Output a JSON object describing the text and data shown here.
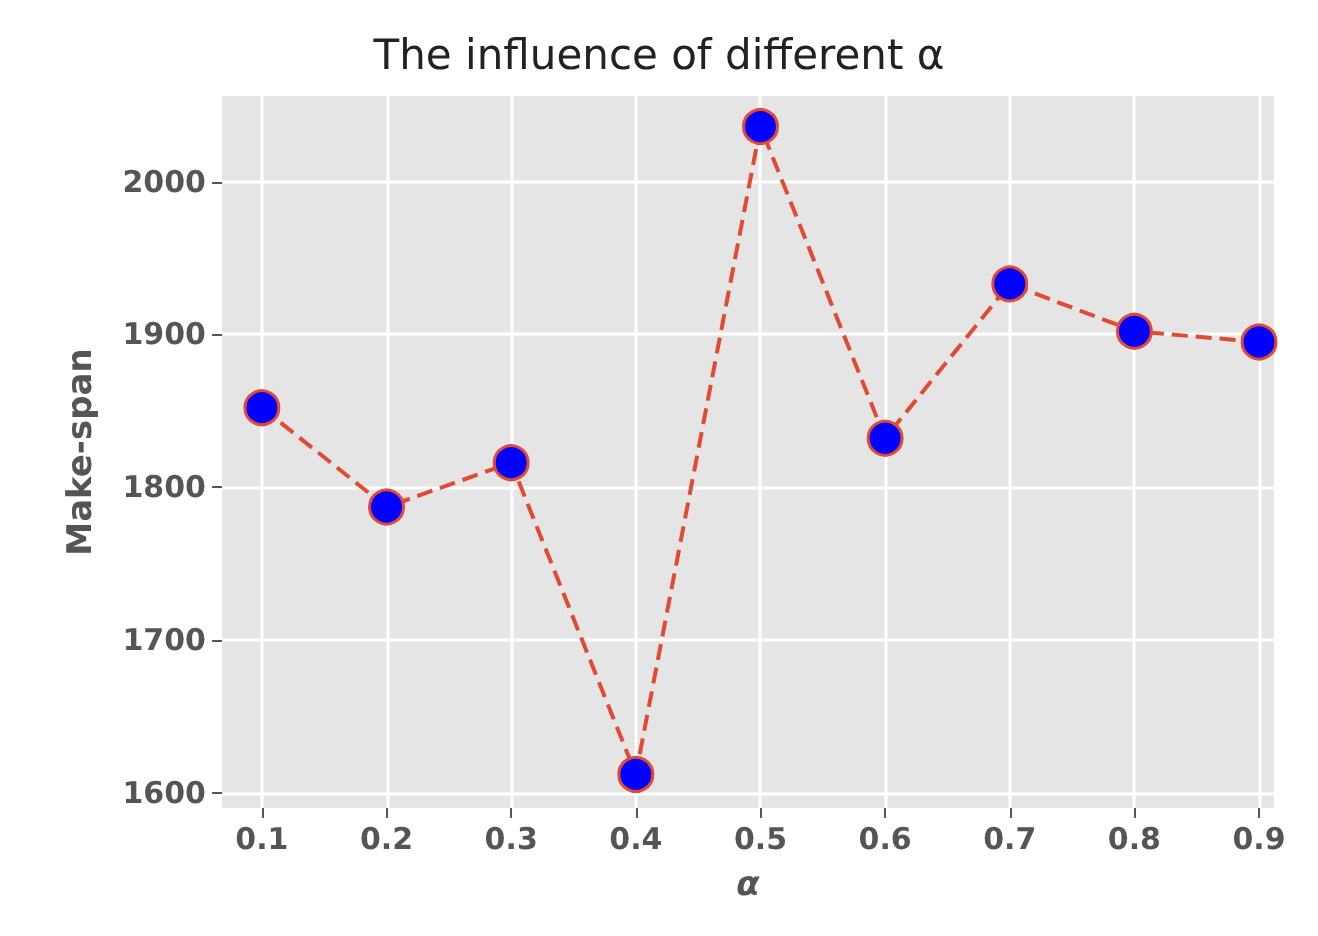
{
  "chart_data": {
    "type": "line",
    "title": "The influence of different α",
    "xlabel": "α",
    "ylabel": "Make-span",
    "x": [
      0.1,
      0.2,
      0.3,
      0.4,
      0.5,
      0.6,
      0.7,
      0.8,
      0.9
    ],
    "series": [
      {
        "color": "#e24a33",
        "colors": [
          "#0000ff",
          "#0000ff",
          "#0000ff",
          "#0000ff",
          "#0000ff",
          "#0000ff",
          "#0000ff",
          "#0000ff",
          "#0000ff"
        ],
        "values": [
          1852,
          1787,
          1816,
          1612,
          2036,
          1832,
          1933,
          1902,
          1895
        ]
      }
    ],
    "xlim": [
      0.068,
      0.912
    ],
    "xticks": [
      0.1,
      0.2,
      0.3,
      0.4,
      0.5,
      0.6,
      0.7,
      0.8,
      0.9
    ],
    "ylim": [
      1590,
      2056
    ],
    "yticks": [
      1600,
      1700,
      1800,
      1900,
      2000
    ],
    "grid": true,
    "marker": "circle",
    "line_style": "dashed"
  }
}
